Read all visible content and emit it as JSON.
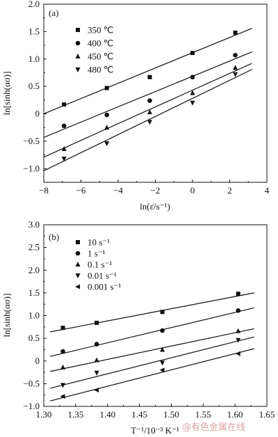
{
  "chart_data": [
    {
      "type": "scatter",
      "panel_label": "(a)",
      "xlabel": "ln(ε̇/s⁻¹)",
      "ylabel": "ln[sinh(ασ)]",
      "xlim": [
        -8,
        4
      ],
      "ylim": [
        -1.25,
        2.0
      ],
      "x_ticks": [
        -8,
        -6,
        -4,
        -2,
        0,
        2,
        4
      ],
      "x_tick_labels": [
        "−8",
        "−6",
        "−4",
        "−2",
        "0",
        "2",
        "4"
      ],
      "y_ticks": [
        -1.0,
        -0.5,
        0,
        0.5,
        1.0,
        1.5,
        2.0
      ],
      "y_tick_labels": [
        "−1.0",
        "−0.5",
        "0",
        "0.5",
        "1.0",
        "1.5",
        "2.0"
      ],
      "x": [
        -6.91,
        -4.61,
        -2.3,
        0,
        2.3
      ],
      "fit_x_range": [
        -8,
        3.2
      ],
      "legend_position": "top-left",
      "series": [
        {
          "name": "350 ℃",
          "marker": "square",
          "values": [
            0.17,
            0.47,
            0.67,
            1.11,
            1.48
          ],
          "fit": [
            0.0,
            1.56
          ]
        },
        {
          "name": "400 ℃",
          "marker": "circle",
          "values": [
            -0.22,
            -0.02,
            0.24,
            0.67,
            1.07
          ],
          "fit": [
            -0.43,
            1.13
          ]
        },
        {
          "name": "450 ℃",
          "marker": "triangle-up",
          "values": [
            -0.64,
            -0.25,
            0.03,
            0.38,
            0.84
          ],
          "fit": [
            -0.79,
            0.92
          ]
        },
        {
          "name": "480 ℃",
          "marker": "triangle-down",
          "values": [
            -0.82,
            -0.54,
            -0.15,
            0.2,
            0.72
          ],
          "fit": [
            -1.04,
            0.81
          ]
        }
      ]
    },
    {
      "type": "scatter",
      "panel_label": "(b)",
      "xlabel": "T⁻¹/10⁻³ K⁻¹",
      "ylabel": "ln[sinh(ασ)]",
      "xlim": [
        1.3,
        1.65
      ],
      "ylim": [
        -1.0,
        3.0
      ],
      "x_ticks": [
        1.3,
        1.35,
        1.4,
        1.45,
        1.5,
        1.55,
        1.6,
        1.65
      ],
      "x_tick_labels": [
        "1.30",
        "1.35",
        "1.40",
        "1.45",
        "1.50",
        "1.55",
        "1.60",
        "1.65"
      ],
      "y_ticks": [
        -1.0,
        -0.5,
        0,
        0.5,
        1.0,
        1.5,
        2.0,
        2.5,
        3.0
      ],
      "y_tick_labels": [
        "−1.0",
        "−0.5",
        "0",
        "0.5",
        "1.0",
        "1.5",
        "2.0",
        "2.5",
        "3.0"
      ],
      "x": [
        1.33,
        1.383,
        1.486,
        1.605
      ],
      "fit_x_range": [
        1.31,
        1.63
      ],
      "legend_position": "top-left",
      "series": [
        {
          "name": "10 s⁻¹",
          "marker": "square",
          "values": [
            0.73,
            0.84,
            1.08,
            1.48
          ],
          "fit": [
            0.64,
            1.5
          ]
        },
        {
          "name": "1 s⁻¹",
          "marker": "circle",
          "values": [
            0.21,
            0.37,
            0.67,
            1.11
          ],
          "fit": [
            0.1,
            1.17
          ]
        },
        {
          "name": "0.1 s⁻¹",
          "marker": "triangle-up",
          "values": [
            -0.14,
            0.02,
            0.25,
            0.66
          ],
          "fit": [
            -0.23,
            0.71
          ]
        },
        {
          "name": "0.01 s⁻¹",
          "marker": "triangle-down",
          "values": [
            -0.53,
            -0.26,
            -0.04,
            0.46
          ],
          "fit": [
            -0.6,
            0.53
          ]
        },
        {
          "name": "0.001 s⁻¹",
          "marker": "triangle-left",
          "values": [
            -0.78,
            -0.64,
            -0.2,
            0.16
          ],
          "fit": [
            -0.88,
            0.27
          ]
        }
      ]
    }
  ],
  "watermark": "@有色金属在线"
}
